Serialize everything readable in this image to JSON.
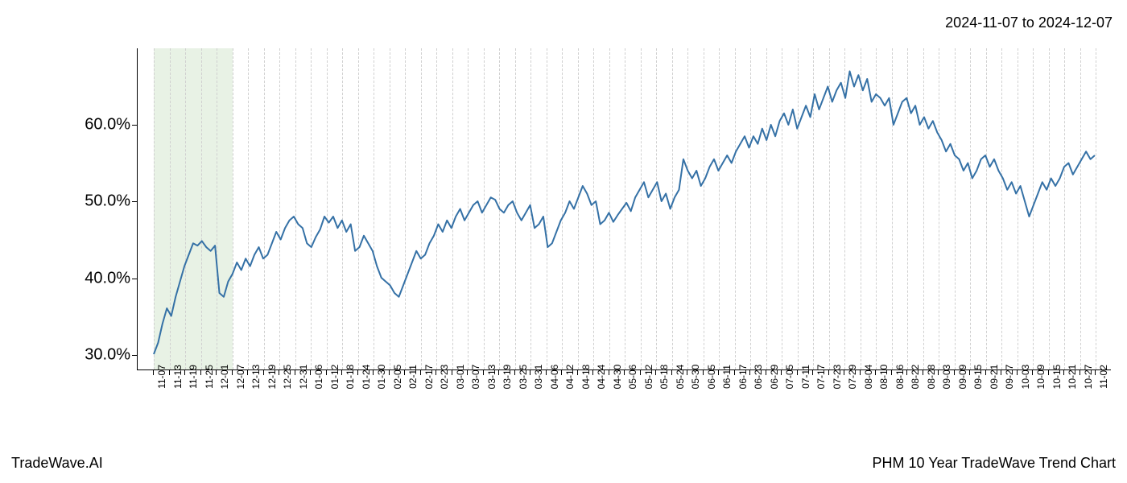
{
  "date_range": "2024-11-07 to 2024-12-07",
  "footer_left": "TradeWave.AI",
  "footer_right": "PHM 10 Year TradeWave Trend Chart",
  "chart": {
    "type": "line",
    "line_color": "#3571a6",
    "line_width": 2,
    "background_color": "#ffffff",
    "grid_color": "#d0d0d0",
    "axis_color": "#000000",
    "highlight_band_color": "#d9ead3",
    "highlight_band_opacity": 0.6,
    "highlight_start_index": 0,
    "highlight_end_index": 5,
    "ylim": [
      28,
      70
    ],
    "yticks": [
      30,
      40,
      50,
      60
    ],
    "ytick_labels": [
      "30.0%",
      "40.0%",
      "50.0%",
      "60.0%"
    ],
    "ytick_fontsize": 20,
    "xtick_fontsize": 12,
    "xtick_rotation": -90,
    "x_labels": [
      "11-07",
      "11-13",
      "11-19",
      "11-25",
      "12-01",
      "12-07",
      "12-13",
      "12-19",
      "12-25",
      "12-31",
      "01-06",
      "01-12",
      "01-18",
      "01-24",
      "01-30",
      "02-05",
      "02-11",
      "02-17",
      "02-23",
      "03-01",
      "03-07",
      "03-13",
      "03-19",
      "03-25",
      "03-31",
      "04-06",
      "04-12",
      "04-18",
      "04-24",
      "04-30",
      "05-06",
      "05-12",
      "05-18",
      "05-24",
      "05-30",
      "06-05",
      "06-11",
      "06-17",
      "06-23",
      "06-29",
      "07-05",
      "07-11",
      "07-17",
      "07-23",
      "07-29",
      "08-04",
      "08-10",
      "08-16",
      "08-22",
      "08-28",
      "09-03",
      "09-09",
      "09-15",
      "09-21",
      "09-27",
      "10-03",
      "10-09",
      "10-15",
      "10-21",
      "10-27",
      "11-02"
    ],
    "y_values": [
      30.0,
      31.5,
      34.0,
      36.0,
      35.0,
      37.5,
      39.5,
      41.5,
      43.0,
      44.5,
      44.2,
      44.8,
      44.0,
      43.5,
      44.2,
      38.0,
      37.5,
      39.5,
      40.5,
      42.0,
      41.0,
      42.5,
      41.5,
      43.0,
      44.0,
      42.5,
      43.0,
      44.5,
      46.0,
      45.0,
      46.5,
      47.5,
      48.0,
      47.0,
      46.5,
      44.5,
      44.0,
      45.3,
      46.3,
      48.0,
      47.2,
      48.0,
      46.5,
      47.5,
      46.0,
      47.0,
      43.5,
      44.0,
      45.5,
      44.5,
      43.5,
      41.5,
      40.0,
      39.5,
      39.0,
      38.0,
      37.5,
      39.0,
      40.5,
      42.0,
      43.5,
      42.5,
      43.0,
      44.5,
      45.5,
      47.0,
      46.0,
      47.5,
      46.5,
      48.0,
      49.0,
      47.5,
      48.5,
      49.5,
      50.0,
      48.5,
      49.5,
      50.5,
      50.2,
      49.0,
      48.5,
      49.5,
      50.0,
      48.5,
      47.5,
      48.5,
      49.5,
      46.5,
      47.0,
      48.0,
      44.0,
      44.5,
      46.0,
      47.5,
      48.5,
      50.0,
      49.0,
      50.5,
      52.0,
      51.0,
      49.5,
      50.0,
      47.0,
      47.5,
      48.5,
      47.3,
      48.2,
      49.0,
      49.8,
      48.7,
      50.5,
      51.5,
      52.5,
      50.5,
      51.5,
      52.5,
      50.0,
      51.0,
      49.0,
      50.5,
      51.5,
      55.5,
      54.0,
      53.0,
      54.0,
      52.0,
      53.0,
      54.5,
      55.5,
      54.0,
      55.0,
      56.0,
      55.0,
      56.5,
      57.5,
      58.5,
      57.0,
      58.5,
      57.5,
      59.5,
      58.0,
      60.0,
      58.5,
      60.5,
      61.5,
      60.0,
      62.0,
      59.5,
      61.0,
      62.5,
      61.0,
      64.0,
      62.0,
      63.5,
      65.0,
      63.0,
      64.5,
      65.5,
      63.5,
      67.0,
      65.0,
      66.5,
      64.5,
      66.0,
      63.0,
      64.0,
      63.5,
      62.5,
      63.5,
      60.0,
      61.5,
      63.0,
      63.5,
      61.5,
      62.5,
      60.0,
      61.0,
      59.5,
      60.5,
      59.0,
      58.0,
      56.5,
      57.5,
      56.0,
      55.5,
      54.0,
      55.0,
      53.0,
      54.0,
      55.5,
      56.0,
      54.5,
      55.5,
      54.0,
      53.0,
      51.5,
      52.5,
      51.0,
      52.0,
      50.0,
      48.0,
      49.5,
      51.0,
      52.5,
      51.5,
      53.0,
      52.0,
      53.0,
      54.5,
      55.0,
      53.5,
      54.5,
      55.5,
      56.5,
      55.5,
      56.0
    ]
  }
}
